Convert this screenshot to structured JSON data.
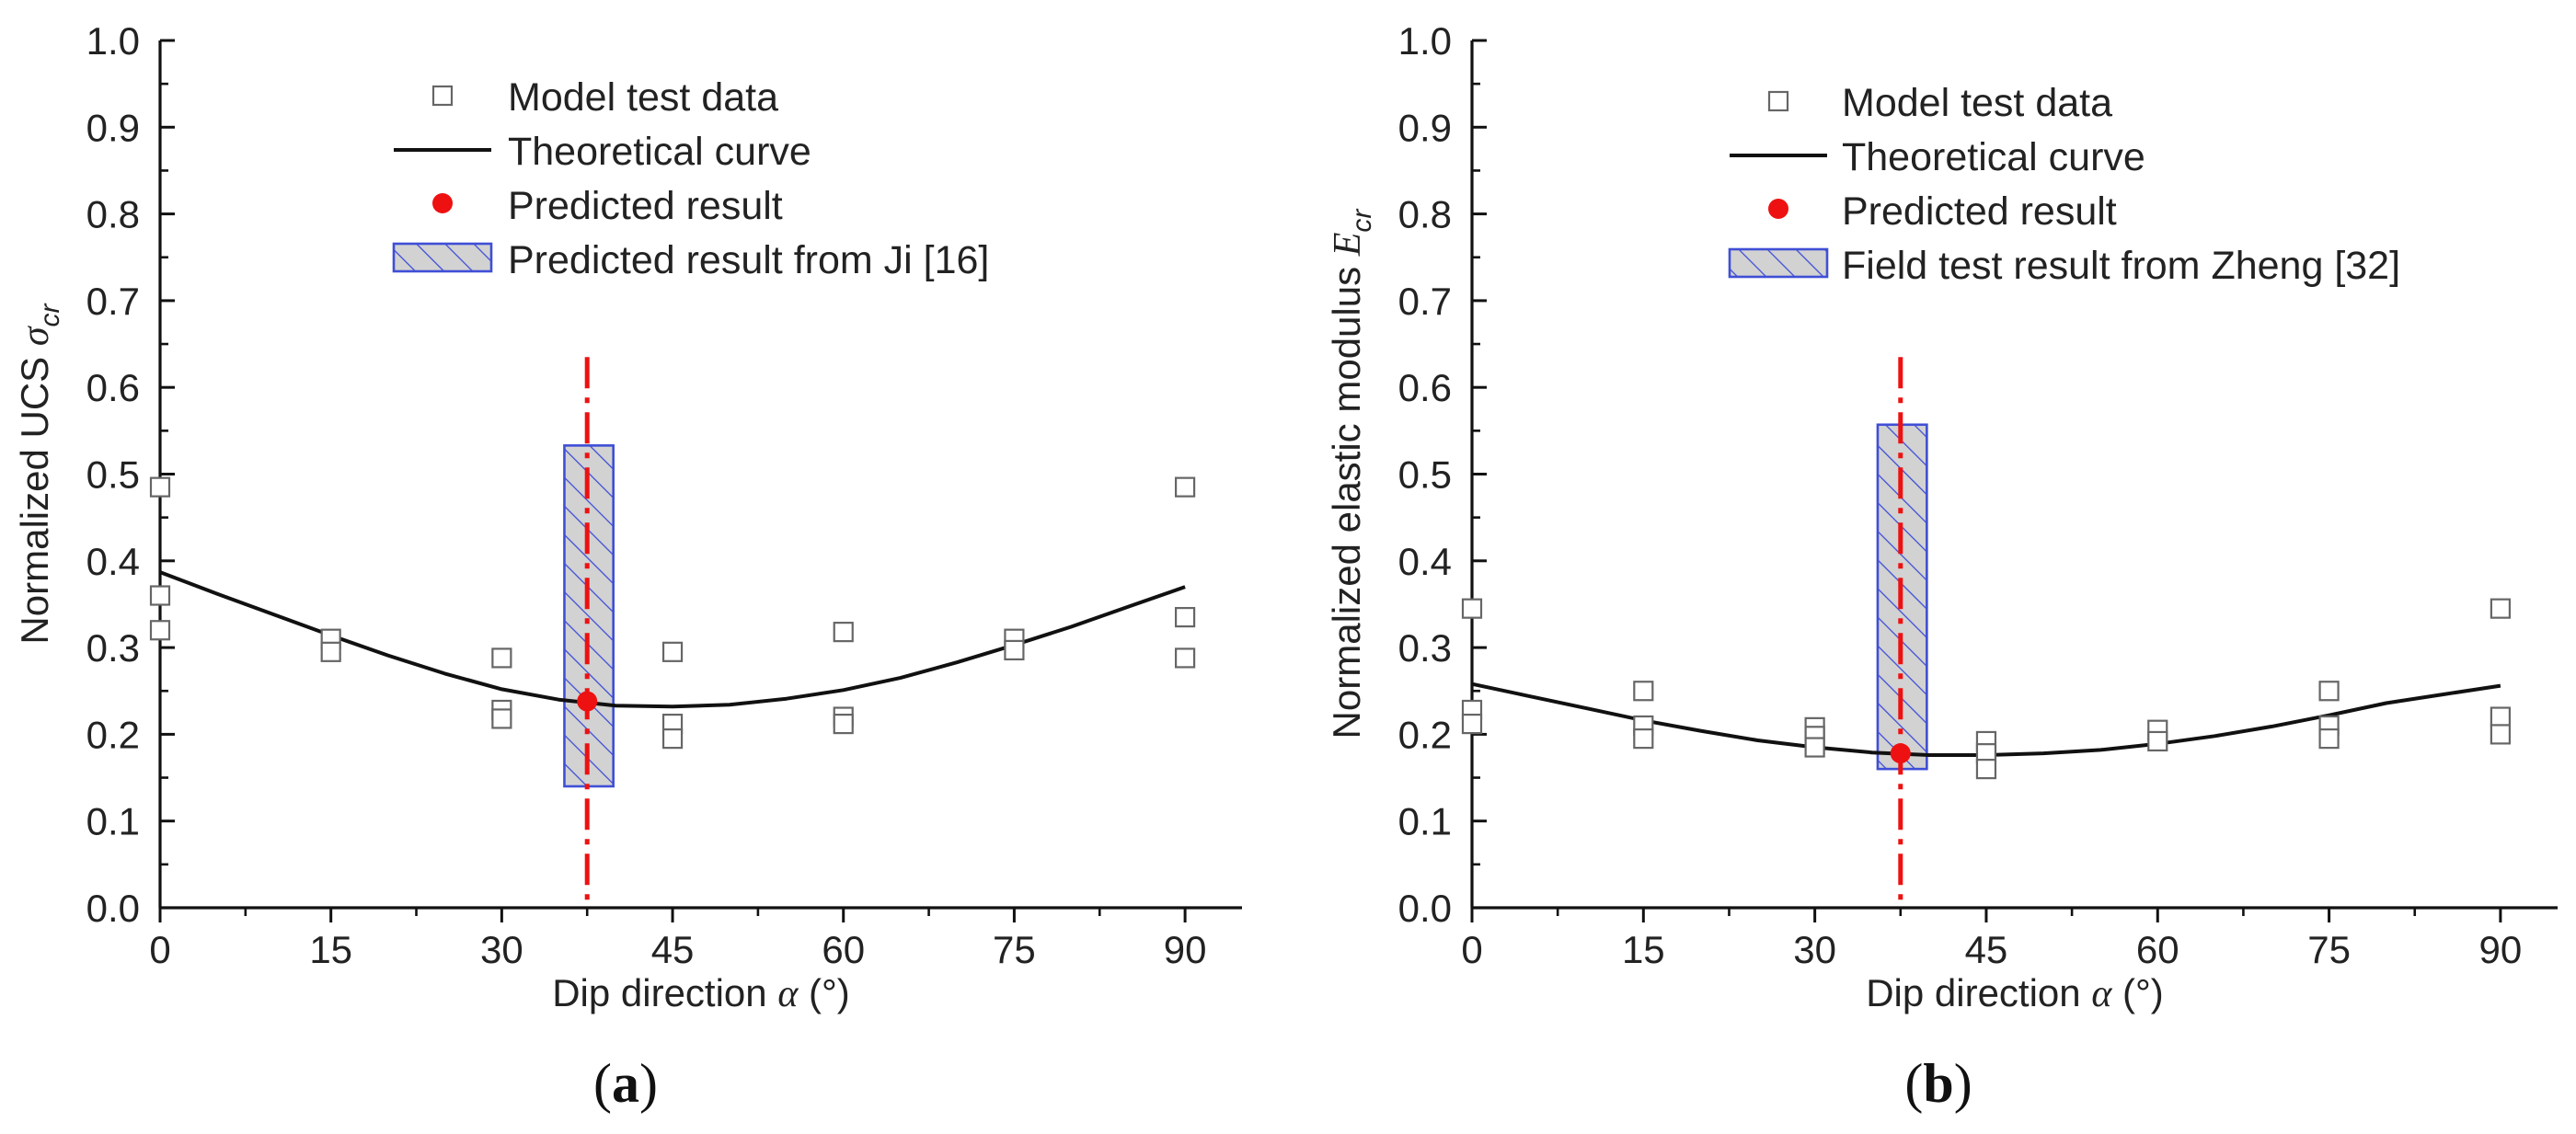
{
  "chart_data": [
    {
      "type": "scatter",
      "panel_label": "a",
      "ylabel_text": "Normalized UCS ",
      "ylabel_symbol": "σ",
      "ylabel_sub": "cr",
      "xlabel_text": "Dip direction ",
      "xlabel_symbol": "α",
      "xlabel_unit": " (°)",
      "xlim": [
        0,
        95
      ],
      "ylim": [
        0,
        1.0
      ],
      "xticks": [
        0,
        15,
        30,
        45,
        60,
        75,
        90
      ],
      "xtick_labels": [
        "0",
        "15",
        "30",
        "45",
        "60",
        "75",
        "90"
      ],
      "yticks": [
        0,
        0.1,
        0.2,
        0.3,
        0.4,
        0.5,
        0.6,
        0.7,
        0.8,
        0.9,
        1.0
      ],
      "ytick_labels": [
        "0.0",
        "0.1",
        "0.2",
        "0.3",
        "0.4",
        "0.5",
        "0.6",
        "0.7",
        "0.8",
        "0.9",
        "1.0"
      ],
      "legend": [
        "Model test data",
        "Theoretical curve",
        "Predicted result",
        "Predicted result from Ji [16]"
      ],
      "model_test_data": {
        "x": [
          0,
          0,
          0,
          15,
          15,
          30,
          30,
          30,
          45,
          45,
          45,
          60,
          60,
          60,
          75,
          75,
          90,
          90,
          90
        ],
        "y": [
          0.485,
          0.36,
          0.32,
          0.31,
          0.295,
          0.288,
          0.228,
          0.218,
          0.295,
          0.212,
          0.195,
          0.318,
          0.22,
          0.212,
          0.31,
          0.297,
          0.485,
          0.335,
          0.288
        ]
      },
      "theoretical_curve": {
        "x": [
          0,
          5,
          10,
          15,
          20,
          25,
          30,
          35,
          40,
          45,
          50,
          55,
          60,
          65,
          70,
          75,
          80,
          85,
          90
        ],
        "y": [
          0.387,
          0.362,
          0.338,
          0.314,
          0.291,
          0.27,
          0.252,
          0.24,
          0.233,
          0.232,
          0.234,
          0.241,
          0.251,
          0.265,
          0.283,
          0.303,
          0.324,
          0.347,
          0.37
        ]
      },
      "predicted_result": {
        "x": 37.5,
        "y": 0.238
      },
      "range_box": {
        "x0": 35.5,
        "x1": 39.8,
        "y0": 0.14,
        "y1": 0.533
      },
      "vline": {
        "x": 37.5,
        "y0": 0,
        "y1": 0.635
      }
    },
    {
      "type": "scatter",
      "panel_label": "b",
      "ylabel_text": "Normalized elastic modulus ",
      "ylabel_symbol": "E",
      "ylabel_sub": "cr",
      "xlabel_text": "Dip direction ",
      "xlabel_symbol": "α",
      "xlabel_unit": " (°)",
      "xlim": [
        0,
        95
      ],
      "ylim": [
        0,
        1.0
      ],
      "xticks": [
        0,
        15,
        30,
        45,
        60,
        75,
        90
      ],
      "xtick_labels": [
        "0",
        "15",
        "30",
        "45",
        "60",
        "75",
        "90"
      ],
      "yticks": [
        0,
        0.1,
        0.2,
        0.3,
        0.4,
        0.5,
        0.6,
        0.7,
        0.8,
        0.9,
        1.0
      ],
      "ytick_labels": [
        "0.0",
        "0.1",
        "0.2",
        "0.3",
        "0.4",
        "0.5",
        "0.6",
        "0.7",
        "0.8",
        "0.9",
        "1.0"
      ],
      "legend": [
        "Model test data",
        "Theoretical curve",
        "Predicted result",
        "Field test result from Zheng [32]"
      ],
      "model_test_data": {
        "x": [
          0,
          0,
          0,
          15,
          15,
          15,
          30,
          30,
          30,
          45,
          45,
          45,
          60,
          60,
          75,
          75,
          75,
          90,
          90,
          90
        ],
        "y": [
          0.345,
          0.228,
          0.212,
          0.25,
          0.21,
          0.195,
          0.208,
          0.198,
          0.185,
          0.192,
          0.178,
          0.16,
          0.205,
          0.192,
          0.25,
          0.21,
          0.195,
          0.345,
          0.22,
          0.2
        ]
      },
      "theoretical_curve": {
        "x": [
          0,
          5,
          10,
          15,
          20,
          25,
          30,
          35,
          40,
          45,
          50,
          55,
          60,
          65,
          70,
          75,
          80,
          85,
          90
        ],
        "y": [
          0.258,
          0.244,
          0.23,
          0.216,
          0.204,
          0.193,
          0.185,
          0.179,
          0.176,
          0.176,
          0.178,
          0.182,
          0.189,
          0.198,
          0.209,
          0.222,
          0.236,
          0.246,
          0.256
        ]
      },
      "predicted_result": {
        "x": 37.5,
        "y": 0.178
      },
      "range_box": {
        "x0": 35.5,
        "x1": 39.8,
        "y0": 0.16,
        "y1": 0.557
      },
      "vline": {
        "x": 37.5,
        "y0": 0,
        "y1": 0.635
      }
    }
  ]
}
